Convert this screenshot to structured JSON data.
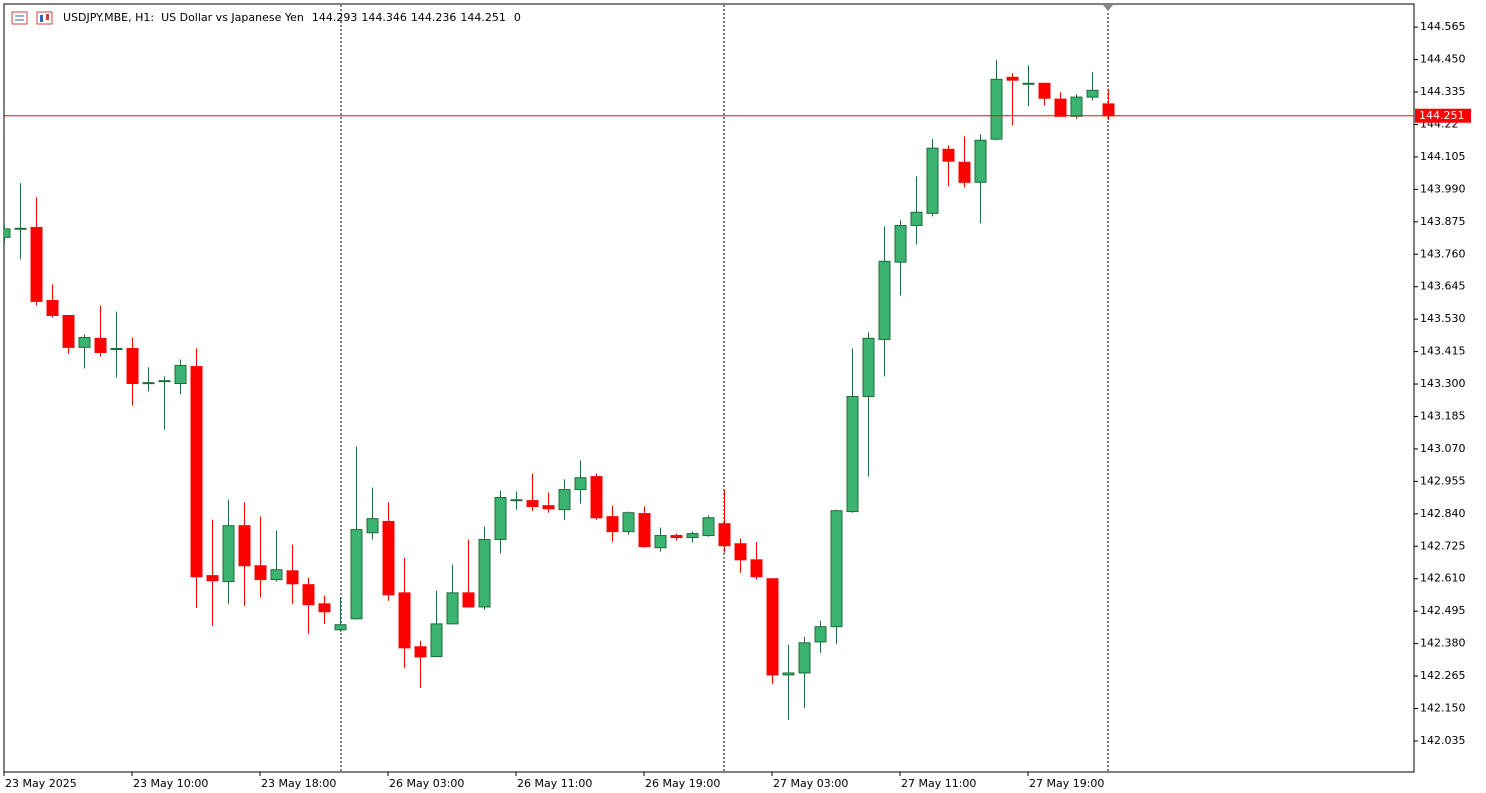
{
  "chart_data": {
    "type": "candlestick",
    "title": "USDJPY.MBE, H1:  US Dollar vs Japanese Yen",
    "volume": 0,
    "categories": [
      "23 May 2025",
      null,
      null,
      null,
      null,
      null,
      null,
      null,
      "23 May 10:00",
      null,
      null,
      null,
      null,
      null,
      null,
      null,
      "23 May 18:00",
      null,
      null,
      null,
      null,
      null,
      null,
      null,
      "26 May 03:00",
      null,
      null,
      null,
      null,
      null,
      null,
      null,
      "26 May 11:00",
      null,
      null,
      null,
      null,
      null,
      null,
      null,
      "26 May 19:00",
      null,
      null,
      null,
      null,
      null,
      null,
      null,
      "27 May 03:00",
      null,
      null,
      null,
      null,
      null,
      null,
      null,
      "27 May 11:00",
      null,
      null,
      null,
      null,
      null,
      null,
      null,
      "27 May 19:00",
      null,
      null,
      null,
      null,
      null
    ],
    "open": [
      143.82,
      143.852,
      143.855,
      143.596,
      143.543,
      143.43,
      143.462,
      143.426,
      143.426,
      143.305,
      143.312,
      143.302,
      143.362,
      142.621,
      142.6,
      142.798,
      142.656,
      142.607,
      142.638,
      142.589,
      142.521,
      142.429,
      142.468,
      142.773,
      142.813,
      142.56,
      142.369,
      142.334,
      142.45,
      142.56,
      142.51,
      142.749,
      142.89,
      142.887,
      142.869,
      142.855,
      142.926,
      142.972,
      142.83,
      142.777,
      142.841,
      142.72,
      142.763,
      142.756,
      142.763,
      142.805,
      142.734,
      142.677,
      142.61,
      142.269,
      142.276,
      142.386,
      142.44,
      142.848,
      143.256,
      143.458,
      143.732,
      143.862,
      143.905,
      144.132,
      144.086,
      144.015,
      144.168,
      144.387,
      144.366,
      144.366,
      144.31,
      144.249,
      144.317,
      144.293
    ],
    "high": [
      143.86,
      144.012,
      143.962,
      143.653,
      143.545,
      143.476,
      143.579,
      143.557,
      143.465,
      143.359,
      143.327,
      143.387,
      143.426,
      142.819,
      142.89,
      142.88,
      142.83,
      142.78,
      142.731,
      142.614,
      142.55,
      142.543,
      143.078,
      142.933,
      142.88,
      142.685,
      142.39,
      142.567,
      142.66,
      142.749,
      142.795,
      142.922,
      142.919,
      142.983,
      142.915,
      142.962,
      143.029,
      142.983,
      142.869,
      142.848,
      142.866,
      142.791,
      142.77,
      142.777,
      142.834,
      142.926,
      142.752,
      142.741,
      142.61,
      142.376,
      142.404,
      142.461,
      142.855,
      143.426,
      143.483,
      143.859,
      143.88,
      144.036,
      144.168,
      144.146,
      144.178,
      144.185,
      144.448,
      144.402,
      144.43,
      144.366,
      144.334,
      144.327,
      144.405,
      144.346
    ],
    "low": [
      143.8,
      143.742,
      143.579,
      143.536,
      143.408,
      143.355,
      143.398,
      143.323,
      143.224,
      143.274,
      143.139,
      143.263,
      142.507,
      142.443,
      142.521,
      142.514,
      142.543,
      142.6,
      142.521,
      142.415,
      142.45,
      142.422,
      142.465,
      142.749,
      142.532,
      142.294,
      142.223,
      142.333,
      142.45,
      142.508,
      142.5,
      142.7,
      142.855,
      142.851,
      142.844,
      142.819,
      142.876,
      142.819,
      142.741,
      142.766,
      142.72,
      142.706,
      142.745,
      142.738,
      142.759,
      142.702,
      142.631,
      142.607,
      142.238,
      142.11,
      142.152,
      142.347,
      142.379,
      142.844,
      142.972,
      143.327,
      143.614,
      143.795,
      143.894,
      144.001,
      143.997,
      143.87,
      144.164,
      144.217,
      144.285,
      144.288,
      144.246,
      144.239,
      144.306,
      144.236
    ],
    "close": [
      143.85,
      143.852,
      143.593,
      143.543,
      143.43,
      143.465,
      143.412,
      143.426,
      143.302,
      143.305,
      143.312,
      143.366,
      142.617,
      142.603,
      142.798,
      142.656,
      142.607,
      142.642,
      142.592,
      142.518,
      142.493,
      142.447,
      142.784,
      142.823,
      142.553,
      142.365,
      142.333,
      142.45,
      142.56,
      142.51,
      142.749,
      142.898,
      142.89,
      142.866,
      142.858,
      142.926,
      142.968,
      142.826,
      142.777,
      142.844,
      142.724,
      142.763,
      142.756,
      142.77,
      142.826,
      142.727,
      142.677,
      142.617,
      142.269,
      142.276,
      142.383,
      142.44,
      142.851,
      143.256,
      143.462,
      143.735,
      143.862,
      143.909,
      144.136,
      144.09,
      144.015,
      144.164,
      144.38,
      144.377,
      144.366,
      144.313,
      144.249,
      144.317,
      144.341,
      144.251
    ],
    "up_color": "#3cb371",
    "down_color": "#ff0000",
    "price_line_color": "#ff0000",
    "ylim": [
      141.925,
      144.647
    ],
    "yticks": [
      144.565,
      {
        "value": 144.45,
        "label": "144.450"
      },
      144.335,
      144.22,
      144.105,
      {
        "value": 143.99,
        "label": "143.990"
      },
      143.875,
      {
        "value": 143.76,
        "label": "143.760"
      },
      143.645,
      {
        "value": 143.53,
        "label": "143.530"
      },
      143.415,
      {
        "value": 143.3,
        "label": "143.300"
      },
      143.185,
      {
        "value": 143.07,
        "label": "143.070"
      },
      142.955,
      {
        "value": 142.84,
        "label": "142.840"
      },
      142.725,
      {
        "value": 142.61,
        "label": "142.610"
      },
      142.495,
      {
        "value": 142.38,
        "label": "142.380"
      },
      142.265,
      {
        "value": 142.15,
        "label": "142.150"
      },
      142.035
    ]
  }
}
